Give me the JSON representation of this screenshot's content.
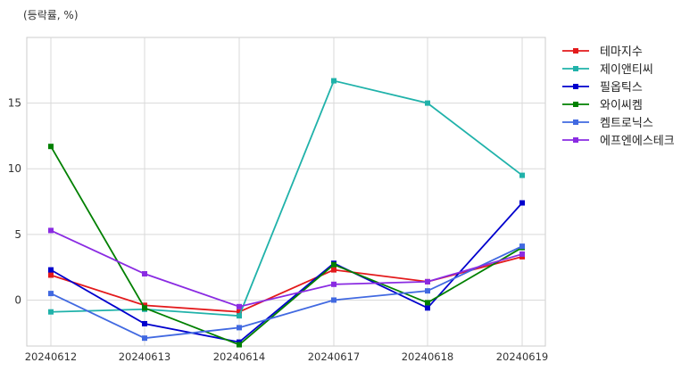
{
  "chart_data": {
    "type": "line",
    "unit_label": "(등락률, %)",
    "x": [
      "20240612",
      "20240613",
      "20240614",
      "20240617",
      "20240618",
      "20240619"
    ],
    "ylim": [
      -3.5,
      20
    ],
    "yticks": [
      0,
      5,
      10,
      15
    ],
    "grid": true,
    "legend_position": "right",
    "series": [
      {
        "name": "테마지수",
        "color": "#e31a1c",
        "values": [
          1.9,
          -0.4,
          -0.9,
          2.3,
          1.4,
          3.3
        ]
      },
      {
        "name": "제이앤티씨",
        "color": "#20b2aa",
        "values": [
          -0.9,
          -0.7,
          -1.2,
          16.7,
          15.0,
          9.5
        ]
      },
      {
        "name": "필옵틱스",
        "color": "#0000cd",
        "values": [
          2.3,
          -1.8,
          -3.2,
          2.8,
          -0.6,
          7.4
        ]
      },
      {
        "name": "와이씨켐",
        "color": "#008000",
        "values": [
          11.7,
          -0.6,
          -3.4,
          2.7,
          -0.2,
          4.0
        ]
      },
      {
        "name": "켐트로닉스",
        "color": "#4169e1",
        "values": [
          0.5,
          -2.9,
          -2.1,
          0.0,
          0.7,
          4.1
        ]
      },
      {
        "name": "에프엔에스테크",
        "color": "#8a2be2",
        "values": [
          5.3,
          2.0,
          -0.5,
          1.2,
          1.4,
          3.5
        ]
      }
    ]
  }
}
